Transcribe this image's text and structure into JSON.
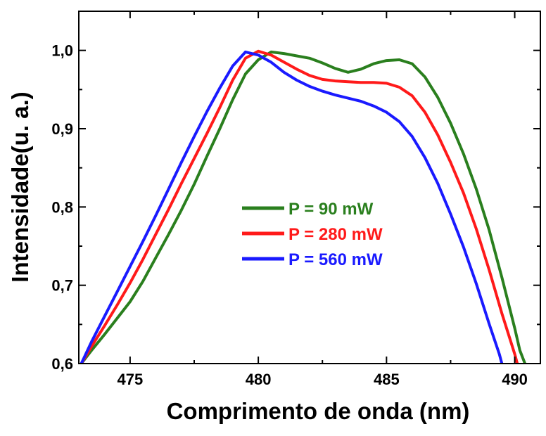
{
  "chart_data": {
    "type": "line",
    "title": "",
    "xlabel": "Comprimento de onda (nm)",
    "ylabel": "Intensidade(u. a.)",
    "xlim": [
      473,
      491
    ],
    "ylim": [
      0.6,
      1.05
    ],
    "x_ticks": [
      {
        "value": 475,
        "label": "475"
      },
      {
        "value": 480,
        "label": "480"
      },
      {
        "value": 485,
        "label": "485"
      },
      {
        "value": 490,
        "label": "490"
      }
    ],
    "y_ticks": [
      {
        "value": 0.6,
        "label": "0,6"
      },
      {
        "value": 0.7,
        "label": "0,7"
      },
      {
        "value": 0.8,
        "label": "0,8"
      },
      {
        "value": 0.9,
        "label": "0,9"
      },
      {
        "value": 1.0,
        "label": "1,0"
      }
    ],
    "grid": false,
    "legend_position": "center",
    "series": [
      {
        "name": "P = 90 mW",
        "color": "#2a7f1e",
        "points": [
          [
            473.1,
            0.6
          ],
          [
            473.5,
            0.617
          ],
          [
            474,
            0.637
          ],
          [
            474.5,
            0.658
          ],
          [
            475,
            0.679
          ],
          [
            475.5,
            0.705
          ],
          [
            476,
            0.735
          ],
          [
            476.5,
            0.765
          ],
          [
            477,
            0.796
          ],
          [
            477.5,
            0.829
          ],
          [
            478,
            0.865
          ],
          [
            478.5,
            0.9
          ],
          [
            479,
            0.937
          ],
          [
            479.5,
            0.97
          ],
          [
            480,
            0.988
          ],
          [
            480.5,
            0.998
          ],
          [
            481,
            0.996
          ],
          [
            481.5,
            0.993
          ],
          [
            482,
            0.99
          ],
          [
            482.5,
            0.984
          ],
          [
            483,
            0.977
          ],
          [
            483.5,
            0.972
          ],
          [
            484,
            0.976
          ],
          [
            484.5,
            0.983
          ],
          [
            485,
            0.987
          ],
          [
            485.5,
            0.988
          ],
          [
            486,
            0.983
          ],
          [
            486.5,
            0.966
          ],
          [
            487,
            0.94
          ],
          [
            487.5,
            0.907
          ],
          [
            488,
            0.868
          ],
          [
            488.5,
            0.823
          ],
          [
            489,
            0.771
          ],
          [
            489.5,
            0.71
          ],
          [
            490,
            0.645
          ],
          [
            490.2,
            0.617
          ],
          [
            490.4,
            0.6
          ]
        ]
      },
      {
        "name": "P = 280 mW",
        "color": "#ff1a1a",
        "points": [
          [
            473.1,
            0.6
          ],
          [
            473.5,
            0.622
          ],
          [
            474,
            0.648
          ],
          [
            474.5,
            0.675
          ],
          [
            475,
            0.703
          ],
          [
            475.5,
            0.733
          ],
          [
            476,
            0.765
          ],
          [
            476.5,
            0.797
          ],
          [
            477,
            0.83
          ],
          [
            477.5,
            0.862
          ],
          [
            478,
            0.894
          ],
          [
            478.5,
            0.927
          ],
          [
            479,
            0.962
          ],
          [
            479.5,
            0.99
          ],
          [
            480,
            0.999
          ],
          [
            480.5,
            0.994
          ],
          [
            481,
            0.985
          ],
          [
            481.5,
            0.976
          ],
          [
            482,
            0.968
          ],
          [
            482.5,
            0.963
          ],
          [
            483,
            0.961
          ],
          [
            483.5,
            0.96
          ],
          [
            484,
            0.959
          ],
          [
            484.5,
            0.959
          ],
          [
            485,
            0.958
          ],
          [
            485.5,
            0.953
          ],
          [
            486,
            0.942
          ],
          [
            486.5,
            0.921
          ],
          [
            487,
            0.892
          ],
          [
            487.5,
            0.857
          ],
          [
            488,
            0.818
          ],
          [
            488.5,
            0.772
          ],
          [
            489,
            0.72
          ],
          [
            489.5,
            0.664
          ],
          [
            490,
            0.612
          ],
          [
            490.1,
            0.6
          ]
        ]
      },
      {
        "name": "P = 560 mW",
        "color": "#1a1aff",
        "points": [
          [
            473.1,
            0.6
          ],
          [
            473.5,
            0.628
          ],
          [
            474,
            0.66
          ],
          [
            474.5,
            0.692
          ],
          [
            475,
            0.724
          ],
          [
            475.5,
            0.756
          ],
          [
            476,
            0.789
          ],
          [
            476.5,
            0.823
          ],
          [
            477,
            0.857
          ],
          [
            477.5,
            0.89
          ],
          [
            478,
            0.922
          ],
          [
            478.5,
            0.952
          ],
          [
            479,
            0.98
          ],
          [
            479.5,
            0.998
          ],
          [
            480,
            0.994
          ],
          [
            480.5,
            0.985
          ],
          [
            481,
            0.972
          ],
          [
            481.5,
            0.962
          ],
          [
            482,
            0.954
          ],
          [
            482.5,
            0.948
          ],
          [
            483,
            0.943
          ],
          [
            483.5,
            0.939
          ],
          [
            484,
            0.935
          ],
          [
            484.5,
            0.929
          ],
          [
            485,
            0.921
          ],
          [
            485.5,
            0.909
          ],
          [
            486,
            0.89
          ],
          [
            486.5,
            0.863
          ],
          [
            487,
            0.83
          ],
          [
            487.5,
            0.791
          ],
          [
            488,
            0.749
          ],
          [
            488.5,
            0.702
          ],
          [
            489,
            0.651
          ],
          [
            489.4,
            0.612
          ],
          [
            489.5,
            0.6
          ]
        ]
      }
    ]
  }
}
